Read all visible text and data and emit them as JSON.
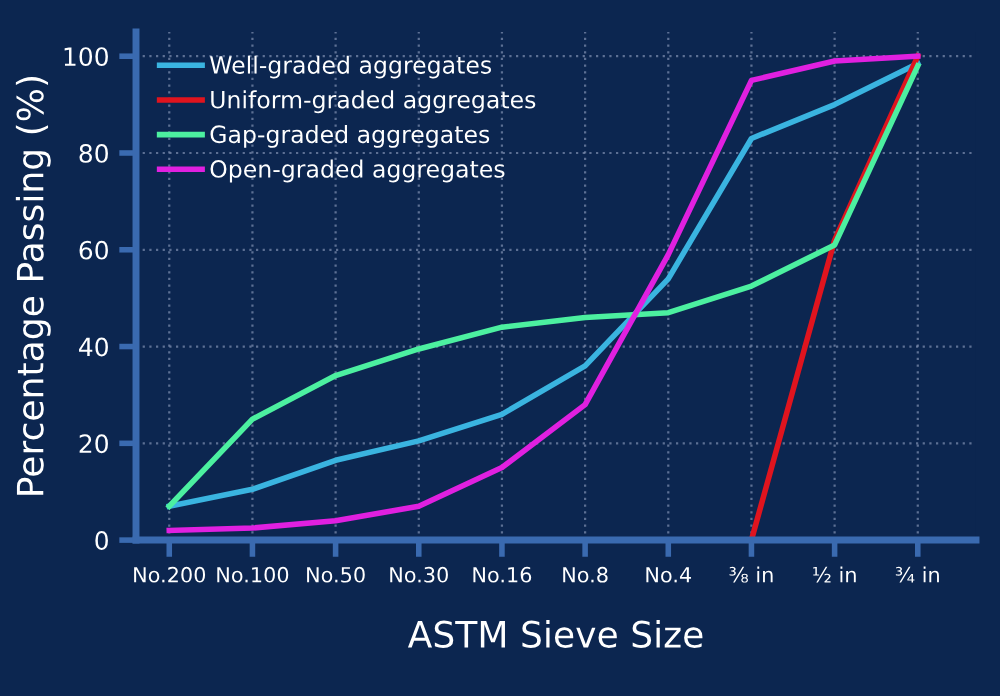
{
  "chart_data": {
    "type": "line",
    "xlabel": "ASTM Sieve Size",
    "ylabel": "Percentage Passing (%)",
    "categories": [
      "No.200",
      "No.100",
      "No.50",
      "No.30",
      "No.16",
      "No.8",
      "No.4",
      "⅜ in",
      "½ in",
      "¾ in"
    ],
    "ylim": [
      0,
      105
    ],
    "yticks": [
      0,
      20,
      40,
      60,
      80,
      100
    ],
    "grid": true,
    "legend": "top left",
    "marker": "none",
    "line_style": "solid",
    "series": [
      {
        "name": "Well-graded aggregates",
        "color": "#3ab4e0",
        "values": [
          7,
          10.5,
          16.5,
          20.5,
          26,
          36,
          54,
          83,
          90,
          98.5
        ]
      },
      {
        "name": "Uniform-graded aggregates",
        "color": "#e0141e",
        "values": [
          null,
          null,
          null,
          null,
          null,
          null,
          null,
          0,
          62,
          100
        ]
      },
      {
        "name": "Gap-graded aggregates",
        "color": "#4cf0a0",
        "values": [
          7,
          25,
          34,
          39.5,
          44,
          46,
          47,
          52.5,
          61,
          98
        ]
      },
      {
        "name": "Open-graded aggregates",
        "color": "#e020e0",
        "values": [
          2,
          2.5,
          4,
          7,
          15,
          28,
          59,
          95,
          99,
          100
        ]
      }
    ]
  }
}
